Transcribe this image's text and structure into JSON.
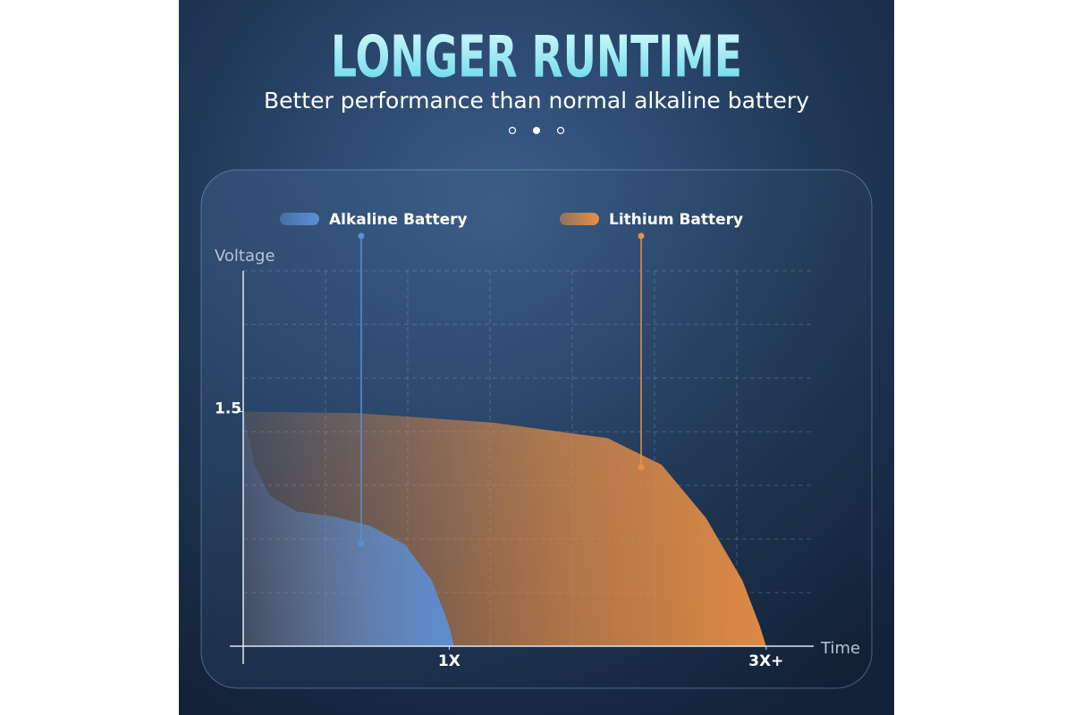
{
  "chart_data": {
    "type": "area",
    "title": "LONGER RUNTIME",
    "subtitle": "Better performance than normal alkaline battery",
    "y_label": "Voltage",
    "x_label": "Time",
    "xlim": [
      -0.3,
      3.3
    ],
    "ylim": [
      0,
      2.4
    ],
    "xticks": [
      {
        "value": 1,
        "label": "1X"
      },
      {
        "value": 3,
        "label": "3X+"
      }
    ],
    "yticks": [
      1.5
    ],
    "grid": true,
    "series": [
      {
        "name": "Alkaline Battery",
        "color": "#5b8fd6",
        "x": [
          -0.3,
          -0.23,
          -0.13,
          0.04,
          0.27,
          0.5,
          0.72,
          0.89,
          1.0,
          1.03
        ],
        "values": [
          1.5,
          1.16,
          0.96,
          0.86,
          0.83,
          0.77,
          0.65,
          0.42,
          0.13,
          0
        ]
      },
      {
        "name": "Lithium Battery",
        "color": "#e98f45",
        "x": [
          -0.3,
          0.42,
          1.27,
          2.0,
          2.34,
          2.62,
          2.85,
          2.96,
          3.0
        ],
        "values": [
          1.5,
          1.49,
          1.43,
          1.33,
          1.16,
          0.82,
          0.42,
          0.13,
          0
        ]
      }
    ]
  }
}
